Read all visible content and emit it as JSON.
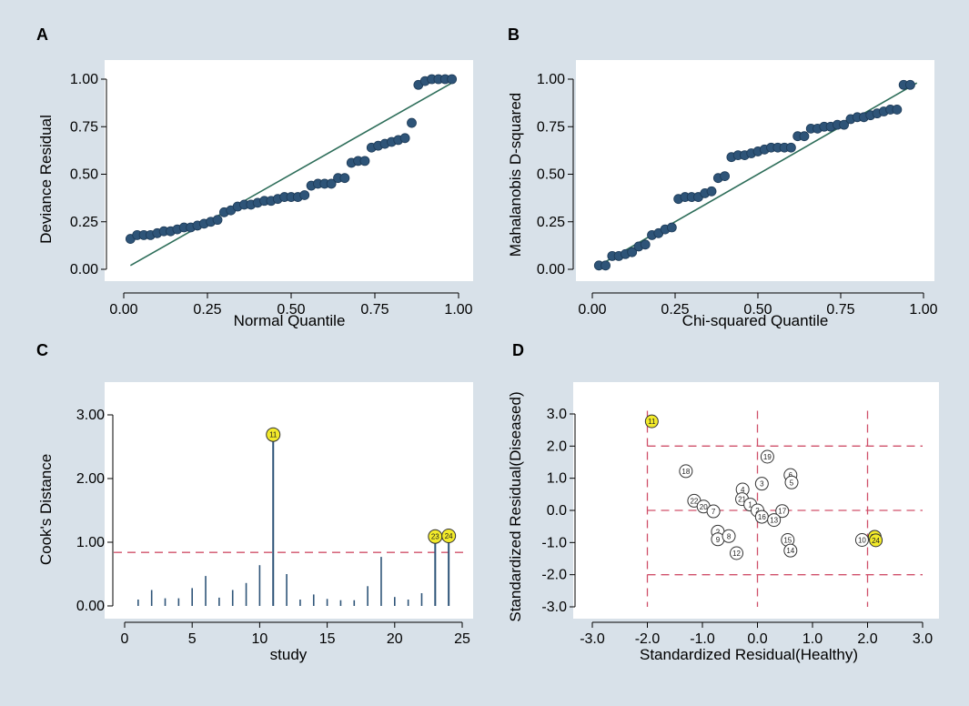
{
  "colors": {
    "background": "#d8e1e9",
    "marker": "#2e5478",
    "marker_edge": "#1c3a57",
    "fitline": "#2e6e5a",
    "reference": "#d0506a",
    "highlight": "#f2ea2a",
    "stem": "#2e5478"
  },
  "chart_data": [
    {
      "panel": "A",
      "type": "scatter",
      "xlabel": "Normal Quantile",
      "ylabel": "Deviance Residual",
      "xlim": [
        0,
        1
      ],
      "ylim": [
        0,
        1
      ],
      "xticks": [
        "0.00",
        "0.25",
        "0.50",
        "0.75",
        "1.00"
      ],
      "yticks": [
        "0.00",
        "0.25",
        "0.50",
        "0.75",
        "1.00"
      ],
      "fit_line": [
        [
          0.02,
          0.02
        ],
        [
          0.98,
          0.98
        ]
      ],
      "points": [
        [
          0.02,
          0.16
        ],
        [
          0.04,
          0.18
        ],
        [
          0.06,
          0.18
        ],
        [
          0.08,
          0.18
        ],
        [
          0.1,
          0.19
        ],
        [
          0.12,
          0.2
        ],
        [
          0.14,
          0.2
        ],
        [
          0.16,
          0.21
        ],
        [
          0.18,
          0.22
        ],
        [
          0.2,
          0.22
        ],
        [
          0.22,
          0.23
        ],
        [
          0.24,
          0.24
        ],
        [
          0.26,
          0.25
        ],
        [
          0.28,
          0.26
        ],
        [
          0.3,
          0.3
        ],
        [
          0.32,
          0.31
        ],
        [
          0.34,
          0.33
        ],
        [
          0.36,
          0.34
        ],
        [
          0.38,
          0.34
        ],
        [
          0.4,
          0.35
        ],
        [
          0.42,
          0.36
        ],
        [
          0.44,
          0.36
        ],
        [
          0.46,
          0.37
        ],
        [
          0.48,
          0.38
        ],
        [
          0.5,
          0.38
        ],
        [
          0.52,
          0.38
        ],
        [
          0.54,
          0.39
        ],
        [
          0.56,
          0.44
        ],
        [
          0.58,
          0.45
        ],
        [
          0.6,
          0.45
        ],
        [
          0.62,
          0.45
        ],
        [
          0.64,
          0.48
        ],
        [
          0.66,
          0.48
        ],
        [
          0.68,
          0.56
        ],
        [
          0.7,
          0.57
        ],
        [
          0.72,
          0.57
        ],
        [
          0.74,
          0.64
        ],
        [
          0.76,
          0.65
        ],
        [
          0.78,
          0.66
        ],
        [
          0.8,
          0.67
        ],
        [
          0.82,
          0.68
        ],
        [
          0.84,
          0.69
        ],
        [
          0.86,
          0.77
        ],
        [
          0.88,
          0.97
        ],
        [
          0.9,
          0.99
        ],
        [
          0.92,
          1.0
        ],
        [
          0.94,
          1.0
        ],
        [
          0.96,
          1.0
        ],
        [
          0.98,
          1.0
        ]
      ]
    },
    {
      "panel": "B",
      "type": "scatter",
      "xlabel": "Chi-squared Quantile",
      "ylabel": "Mahalanobis D-squared",
      "xlim": [
        0,
        1
      ],
      "ylim": [
        0,
        1
      ],
      "xticks": [
        "0.00",
        "0.25",
        "0.50",
        "0.75",
        "1.00"
      ],
      "yticks": [
        "0.00",
        "0.25",
        "0.50",
        "0.75",
        "1.00"
      ],
      "fit_line": [
        [
          0.02,
          0.02
        ],
        [
          0.98,
          0.98
        ]
      ],
      "points": [
        [
          0.02,
          0.02
        ],
        [
          0.04,
          0.02
        ],
        [
          0.06,
          0.07
        ],
        [
          0.08,
          0.07
        ],
        [
          0.1,
          0.08
        ],
        [
          0.12,
          0.09
        ],
        [
          0.14,
          0.12
        ],
        [
          0.16,
          0.13
        ],
        [
          0.18,
          0.18
        ],
        [
          0.2,
          0.19
        ],
        [
          0.22,
          0.21
        ],
        [
          0.24,
          0.22
        ],
        [
          0.26,
          0.37
        ],
        [
          0.28,
          0.38
        ],
        [
          0.3,
          0.38
        ],
        [
          0.32,
          0.38
        ],
        [
          0.34,
          0.4
        ],
        [
          0.36,
          0.41
        ],
        [
          0.38,
          0.48
        ],
        [
          0.4,
          0.49
        ],
        [
          0.42,
          0.59
        ],
        [
          0.44,
          0.6
        ],
        [
          0.46,
          0.6
        ],
        [
          0.48,
          0.61
        ],
        [
          0.5,
          0.62
        ],
        [
          0.52,
          0.63
        ],
        [
          0.54,
          0.64
        ],
        [
          0.56,
          0.64
        ],
        [
          0.58,
          0.64
        ],
        [
          0.6,
          0.64
        ],
        [
          0.62,
          0.7
        ],
        [
          0.64,
          0.7
        ],
        [
          0.66,
          0.74
        ],
        [
          0.68,
          0.74
        ],
        [
          0.7,
          0.75
        ],
        [
          0.72,
          0.75
        ],
        [
          0.74,
          0.76
        ],
        [
          0.76,
          0.76
        ],
        [
          0.78,
          0.79
        ],
        [
          0.8,
          0.8
        ],
        [
          0.82,
          0.8
        ],
        [
          0.84,
          0.81
        ],
        [
          0.86,
          0.82
        ],
        [
          0.88,
          0.83
        ],
        [
          0.9,
          0.84
        ],
        [
          0.92,
          0.84
        ],
        [
          0.94,
          0.97
        ],
        [
          0.96,
          0.97
        ]
      ]
    },
    {
      "panel": "C",
      "type": "bar",
      "xlabel": "study",
      "ylabel": "Cook's Distance",
      "xlim": [
        0,
        25
      ],
      "ylim": [
        0,
        3
      ],
      "xticks": [
        "0",
        "5",
        "10",
        "15",
        "20",
        "25"
      ],
      "yticks": [
        "0.00",
        "1.00",
        "2.00",
        "3.00"
      ],
      "threshold": 0.84,
      "studies": [
        1,
        2,
        3,
        4,
        5,
        6,
        7,
        8,
        9,
        10,
        11,
        12,
        13,
        14,
        15,
        16,
        17,
        18,
        19,
        20,
        21,
        22,
        23,
        24
      ],
      "values": [
        0.1,
        0.25,
        0.12,
        0.12,
        0.28,
        0.47,
        0.13,
        0.25,
        0.36,
        0.64,
        2.69,
        0.5,
        0.1,
        0.18,
        0.11,
        0.09,
        0.09,
        0.31,
        0.77,
        0.14,
        0.1,
        0.2,
        1.09,
        1.1
      ],
      "highlighted": [
        {
          "study": 11,
          "label": "11"
        },
        {
          "study": 23,
          "label": "23"
        },
        {
          "study": 24,
          "label": "24"
        }
      ]
    },
    {
      "panel": "D",
      "type": "scatter",
      "xlabel": "Standardized Residual(Healthy)",
      "ylabel": "Standardized Residual(Diseased)",
      "xlim": [
        -3,
        3
      ],
      "ylim": [
        -3,
        3
      ],
      "xticks": [
        "-3.0",
        "-2.0",
        "-1.0",
        "0.0",
        "1.0",
        "2.0",
        "3.0"
      ],
      "yticks": [
        "-3.0",
        "-2.0",
        "-1.0",
        "0.0",
        "1.0",
        "2.0",
        "3.0"
      ],
      "ref_lines_x": [
        -2,
        0,
        2
      ],
      "ref_lines_y": [
        -2,
        0,
        2
      ],
      "points": [
        {
          "label": "11",
          "x": -1.92,
          "y": 2.77,
          "highlight": true
        },
        {
          "label": "19",
          "x": 0.18,
          "y": 1.67,
          "highlight": false
        },
        {
          "label": "18",
          "x": -1.3,
          "y": 1.22,
          "highlight": false
        },
        {
          "label": "6",
          "x": 0.6,
          "y": 1.1,
          "highlight": false
        },
        {
          "label": "5",
          "x": 0.62,
          "y": 0.87,
          "highlight": false
        },
        {
          "label": "3",
          "x": 0.08,
          "y": 0.83,
          "highlight": false
        },
        {
          "label": "4",
          "x": -0.27,
          "y": 0.65,
          "highlight": false
        },
        {
          "label": "21",
          "x": -0.28,
          "y": 0.35,
          "highlight": false
        },
        {
          "label": "22",
          "x": -1.15,
          "y": 0.3,
          "highlight": false
        },
        {
          "label": "20",
          "x": -0.98,
          "y": 0.12,
          "highlight": false
        },
        {
          "label": "1",
          "x": -0.13,
          "y": 0.18,
          "highlight": false
        },
        {
          "label": "7",
          "x": -0.8,
          "y": -0.03,
          "highlight": false
        },
        {
          "label": "2",
          "x": 0.0,
          "y": 0.0,
          "highlight": false
        },
        {
          "label": "17",
          "x": 0.45,
          "y": -0.02,
          "highlight": false
        },
        {
          "label": "16",
          "x": 0.08,
          "y": -0.2,
          "highlight": false
        },
        {
          "label": "13",
          "x": 0.3,
          "y": -0.3,
          "highlight": false
        },
        {
          "label": "2",
          "x": -0.72,
          "y": -0.66,
          "highlight": false
        },
        {
          "label": "9",
          "x": -0.72,
          "y": -0.9,
          "highlight": false
        },
        {
          "label": "8",
          "x": -0.52,
          "y": -0.8,
          "highlight": false
        },
        {
          "label": "15",
          "x": 0.55,
          "y": -0.92,
          "highlight": false
        },
        {
          "label": "14",
          "x": 0.6,
          "y": -1.25,
          "highlight": false
        },
        {
          "label": "12",
          "x": -0.38,
          "y": -1.33,
          "highlight": false
        },
        {
          "label": "10",
          "x": 1.9,
          "y": -0.92,
          "highlight": false
        },
        {
          "label": "23",
          "x": 2.13,
          "y": -0.82,
          "highlight": true
        },
        {
          "label": "24",
          "x": 2.15,
          "y": -0.93,
          "highlight": true
        }
      ]
    }
  ]
}
